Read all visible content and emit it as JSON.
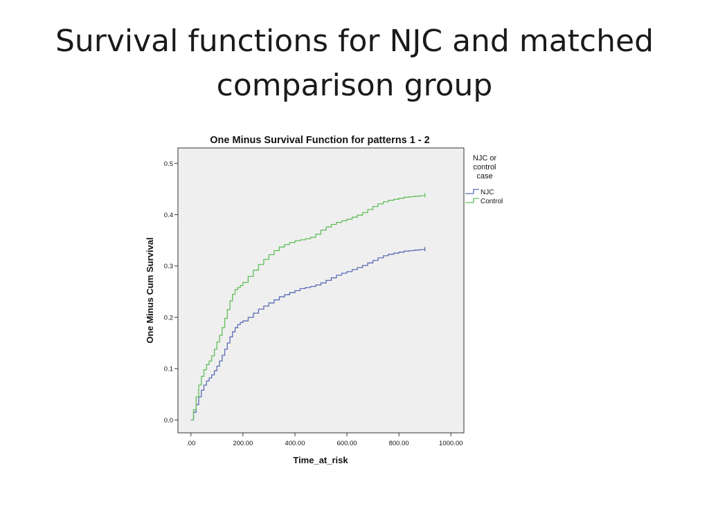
{
  "slide": {
    "title_line1": "Survival functions for NJC and matched",
    "title_line2": "comparison group"
  },
  "chart_data": {
    "type": "line",
    "title": "One Minus Survival Function for patterns 1 - 2",
    "xlabel": "Time_at_risk",
    "ylabel": "One Minus Cum Survival",
    "xlim": [
      -50,
      1050
    ],
    "ylim": [
      -0.025,
      0.53
    ],
    "xticks": [
      0,
      200,
      400,
      600,
      800,
      1000
    ],
    "xtick_labels": [
      ".00",
      "200.00",
      "400.00",
      "600.00",
      "800.00",
      "1000.00"
    ],
    "yticks": [
      0.0,
      0.1,
      0.2,
      0.3,
      0.4,
      0.5
    ],
    "ytick_labels": [
      "0.0",
      "0.1",
      "0.2",
      "0.3",
      "0.4",
      "0.5"
    ],
    "grid": false,
    "step": true,
    "plot_background": "#efefef",
    "legend": {
      "title_lines": [
        "NJC or",
        "control",
        "case"
      ],
      "placement": "right"
    },
    "series": [
      {
        "name": "NJC",
        "color": "#5a6bb5",
        "x": [
          0,
          10,
          20,
          30,
          40,
          50,
          60,
          70,
          80,
          90,
          100,
          110,
          120,
          130,
          140,
          150,
          160,
          170,
          180,
          190,
          200,
          220,
          240,
          260,
          280,
          300,
          320,
          340,
          360,
          380,
          400,
          420,
          440,
          460,
          480,
          500,
          520,
          540,
          560,
          580,
          600,
          620,
          640,
          660,
          680,
          700,
          720,
          740,
          760,
          780,
          800,
          820,
          840,
          860,
          880,
          900
        ],
        "y": [
          0.0,
          0.015,
          0.03,
          0.045,
          0.058,
          0.068,
          0.076,
          0.082,
          0.088,
          0.096,
          0.105,
          0.115,
          0.126,
          0.138,
          0.15,
          0.162,
          0.172,
          0.18,
          0.186,
          0.19,
          0.193,
          0.2,
          0.208,
          0.216,
          0.222,
          0.228,
          0.234,
          0.24,
          0.244,
          0.248,
          0.252,
          0.256,
          0.258,
          0.26,
          0.263,
          0.267,
          0.272,
          0.277,
          0.282,
          0.286,
          0.289,
          0.293,
          0.297,
          0.301,
          0.306,
          0.311,
          0.316,
          0.32,
          0.323,
          0.325,
          0.327,
          0.329,
          0.33,
          0.331,
          0.332,
          0.333
        ]
      },
      {
        "name": "Control",
        "color": "#5fbf5a",
        "x": [
          0,
          10,
          20,
          30,
          40,
          50,
          60,
          70,
          80,
          90,
          100,
          110,
          120,
          130,
          140,
          150,
          160,
          170,
          180,
          190,
          200,
          220,
          240,
          260,
          280,
          300,
          320,
          340,
          360,
          380,
          400,
          420,
          440,
          460,
          480,
          500,
          520,
          540,
          560,
          580,
          600,
          620,
          640,
          660,
          680,
          700,
          720,
          740,
          760,
          780,
          800,
          820,
          840,
          860,
          880,
          900
        ],
        "y": [
          0.0,
          0.02,
          0.045,
          0.068,
          0.085,
          0.098,
          0.108,
          0.115,
          0.125,
          0.138,
          0.152,
          0.165,
          0.18,
          0.198,
          0.215,
          0.232,
          0.245,
          0.254,
          0.258,
          0.262,
          0.268,
          0.28,
          0.292,
          0.303,
          0.313,
          0.322,
          0.33,
          0.337,
          0.342,
          0.346,
          0.349,
          0.351,
          0.353,
          0.356,
          0.362,
          0.37,
          0.376,
          0.381,
          0.385,
          0.388,
          0.391,
          0.395,
          0.399,
          0.404,
          0.41,
          0.416,
          0.421,
          0.425,
          0.428,
          0.43,
          0.432,
          0.434,
          0.435,
          0.436,
          0.437,
          0.438
        ]
      }
    ]
  }
}
